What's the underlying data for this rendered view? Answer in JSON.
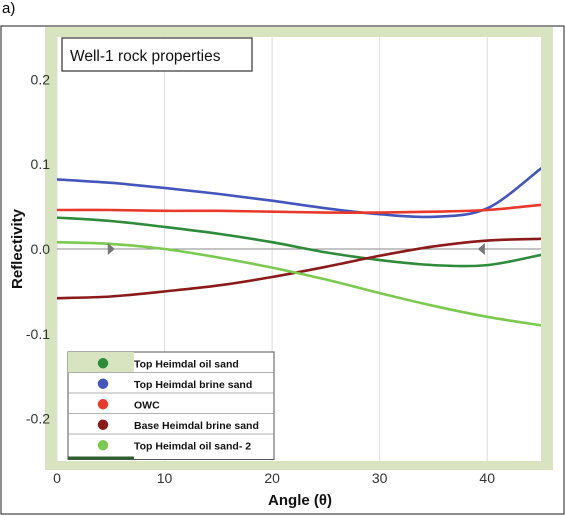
{
  "panel_label": "a)",
  "chart_data": {
    "type": "line",
    "title": "Well-1 rock properties",
    "xlabel": "Angle (θ)",
    "ylabel": "Reflectivity",
    "xlim": [
      0,
      45
    ],
    "ylim": [
      -0.25,
      0.25
    ],
    "x_ticks": [
      0,
      10,
      20,
      30,
      40
    ],
    "y_ticks": [
      0.2,
      0.1,
      0.0,
      -0.1,
      -0.2
    ],
    "x_tick_labels": [
      "0",
      "10",
      "20",
      "30",
      "40"
    ],
    "y_tick_labels": [
      "0.2",
      "0.1",
      "0.0",
      "-0.1",
      "-0.2"
    ],
    "grid": "vertical",
    "legend_position": "bottom-left",
    "x": [
      0,
      5,
      10,
      15,
      20,
      25,
      30,
      35,
      40,
      45
    ],
    "series": [
      {
        "name": "Top Heimdal oil sand",
        "color": "#2e8b3a",
        "values": [
          0.037,
          0.033,
          0.026,
          0.018,
          0.008,
          -0.004,
          -0.013,
          -0.019,
          -0.019,
          -0.007
        ]
      },
      {
        "name": "Top Heimdal brine sand",
        "color": "#4455bb",
        "values": [
          0.082,
          0.078,
          0.072,
          0.065,
          0.057,
          0.048,
          0.041,
          0.038,
          0.048,
          0.095
        ]
      },
      {
        "name": "OWC",
        "color": "#e8392b",
        "values": [
          0.046,
          0.046,
          0.045,
          0.045,
          0.044,
          0.043,
          0.043,
          0.044,
          0.046,
          0.052
        ]
      },
      {
        "name": "Base Heimdal brine sand",
        "color": "#8b1a1a",
        "values": [
          -0.058,
          -0.056,
          -0.05,
          -0.043,
          -0.033,
          -0.021,
          -0.008,
          0.003,
          0.01,
          0.012
        ]
      },
      {
        "name": "Top Heimdal oil sand- 2",
        "color": "#7cc94f",
        "values": [
          0.008,
          0.006,
          0.0,
          -0.01,
          -0.022,
          -0.036,
          -0.052,
          -0.067,
          -0.08,
          -0.09
        ]
      }
    ]
  }
}
